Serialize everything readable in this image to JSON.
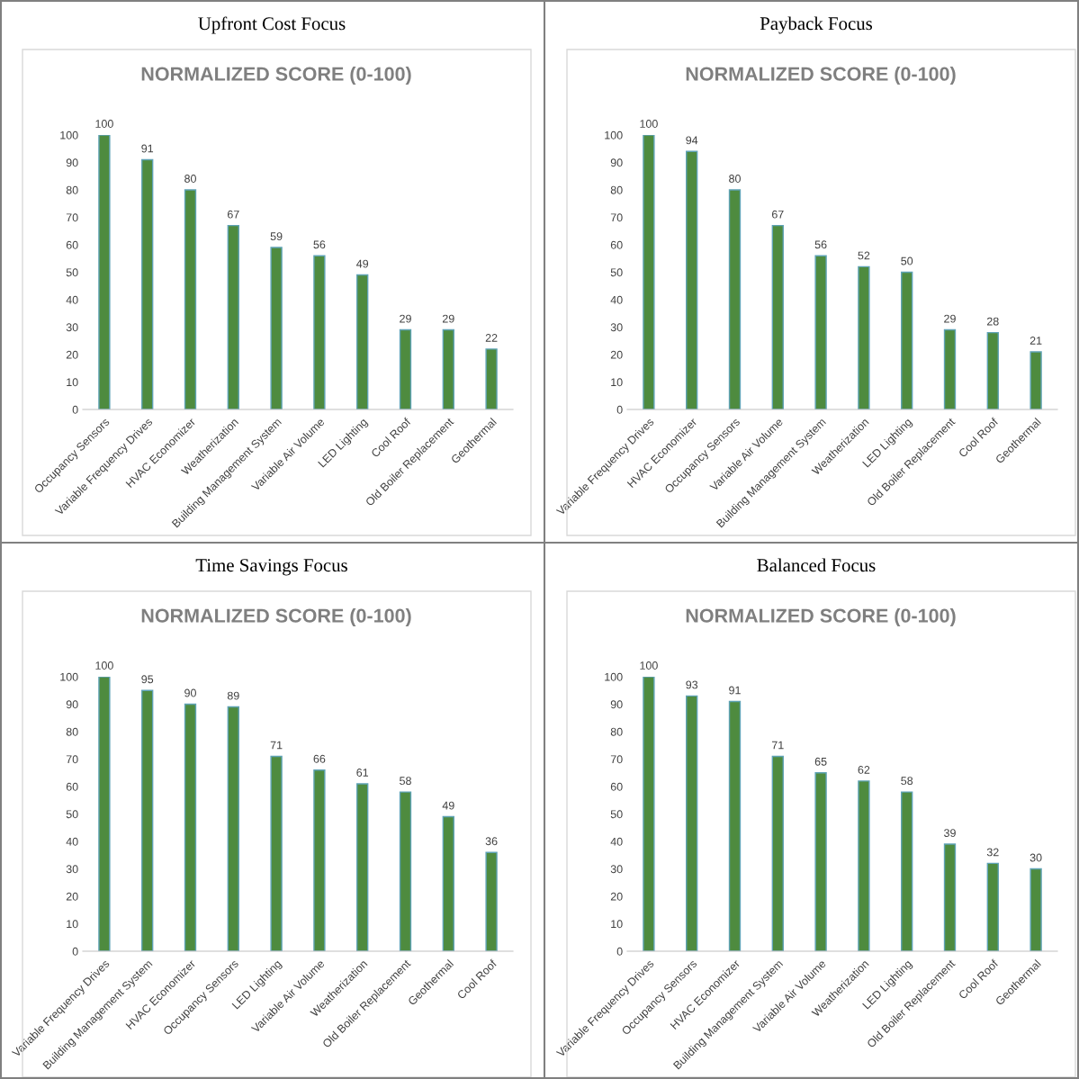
{
  "chart_data": [
    {
      "type": "bar",
      "title": "Upfront Cost Focus",
      "subtitle": "NORMALIZED SCORE (0-100)",
      "categories": [
        "Occupancy Sensors",
        "Variable Frequency Drives",
        "HVAC Economizer",
        "Weatherization",
        "Building Management System",
        "Variable Air Volume",
        "LED Lighting",
        "Cool Roof",
        "Old Boiler Replacement",
        "Geothermal"
      ],
      "values": [
        100,
        91,
        80,
        67,
        59,
        56,
        49,
        29,
        29,
        22
      ],
      "color": "#4e8b3f",
      "ylim": [
        0,
        100
      ],
      "yticks": [
        0,
        10,
        20,
        30,
        40,
        50,
        60,
        70,
        80,
        90,
        100
      ],
      "data_labels": true,
      "grid": false,
      "legend": false
    },
    {
      "type": "bar",
      "title": "Payback Focus",
      "subtitle": "NORMALIZED SCORE (0-100)",
      "categories": [
        "Variable Frequency Drives",
        "HVAC Economizer",
        "Occupancy Sensors",
        "Variable Air Volume",
        "Building Management System",
        "Weatherization",
        "LED Lighting",
        "Old Boiler Replacement",
        "Cool Roof",
        "Geothermal"
      ],
      "values": [
        100,
        94,
        80,
        67,
        56,
        52,
        50,
        29,
        28,
        21
      ],
      "color": "#4e8b3f",
      "ylim": [
        0,
        100
      ],
      "yticks": [
        0,
        10,
        20,
        30,
        40,
        50,
        60,
        70,
        80,
        90,
        100
      ],
      "data_labels": true,
      "grid": false,
      "legend": false
    },
    {
      "type": "bar",
      "title": "Time Savings Focus",
      "subtitle": "NORMALIZED SCORE (0-100)",
      "categories": [
        "Variable Frequency Drives",
        "Building Management System",
        "HVAC Economizer",
        "Occupancy Sensors",
        "LED Lighting",
        "Variable Air Volume",
        "Weatherization",
        "Old Boiler Replacement",
        "Geothermal",
        "Cool Roof"
      ],
      "values": [
        100,
        95,
        90,
        89,
        71,
        66,
        61,
        58,
        49,
        36
      ],
      "color": "#4e8b3f",
      "ylim": [
        0,
        100
      ],
      "yticks": [
        0,
        10,
        20,
        30,
        40,
        50,
        60,
        70,
        80,
        90,
        100
      ],
      "data_labels": true,
      "grid": false,
      "legend": false
    },
    {
      "type": "bar",
      "title": "Balanced Focus",
      "subtitle": "NORMALIZED SCORE (0-100)",
      "categories": [
        "Variable Frequency Drives",
        "Occupancy Sensors",
        "HVAC Economizer",
        "Building Management System",
        "Variable Air Volume",
        "Weatherization",
        "LED Lighting",
        "Old Boiler Replacement",
        "Cool Roof",
        "Geothermal"
      ],
      "values": [
        100,
        93,
        91,
        71,
        65,
        62,
        58,
        39,
        32,
        30
      ],
      "color": "#4e8b3f",
      "ylim": [
        0,
        100
      ],
      "yticks": [
        0,
        10,
        20,
        30,
        40,
        50,
        60,
        70,
        80,
        90,
        100
      ],
      "data_labels": true,
      "grid": false,
      "legend": false
    }
  ]
}
